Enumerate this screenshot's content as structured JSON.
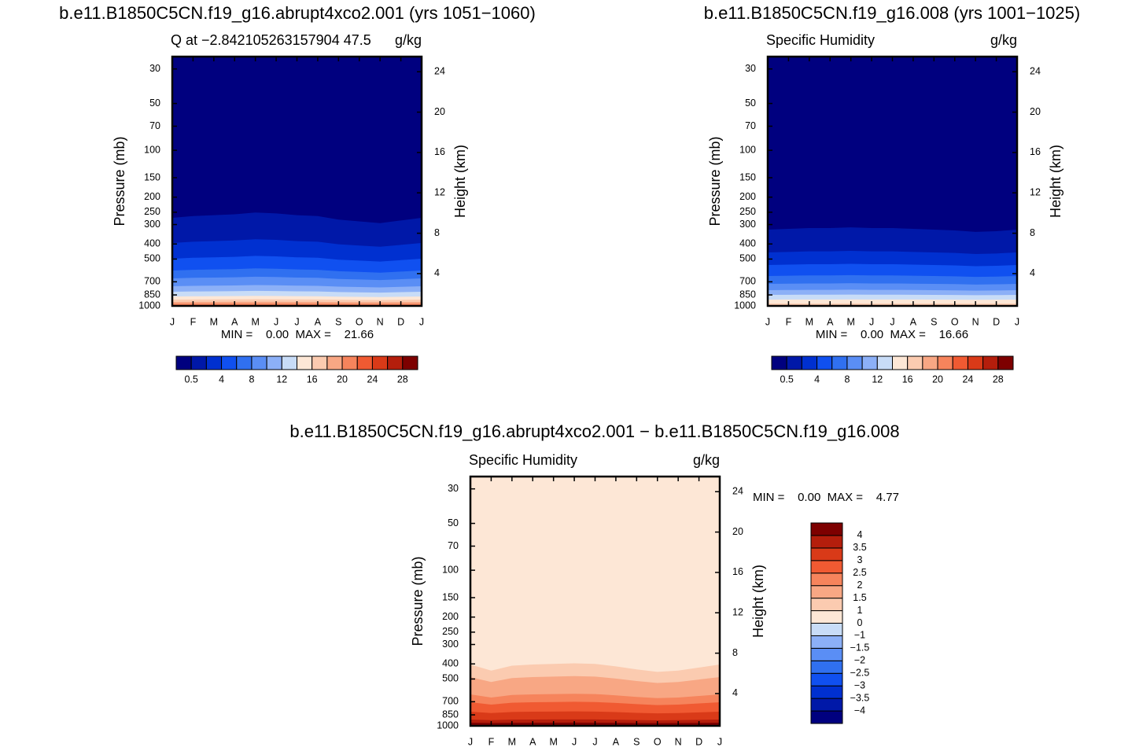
{
  "chart_data": [
    {
      "type": "contour",
      "title": "b.e11.B1850C5CN.f19_g16.abrupt4xco2.001 (yrs 1051−1060)",
      "subtitle_left": "Q  at  −2.842105263157904  47.5",
      "subtitle_right": "g/kg",
      "ylabel": "Pressure (mb)",
      "y2label": "Height (km)",
      "categories": [
        "J",
        "F",
        "M",
        "A",
        "M",
        "J",
        "J",
        "A",
        "S",
        "O",
        "N",
        "D",
        "J"
      ],
      "ylog": true,
      "ylim": [
        1000,
        25
      ],
      "yticks": [
        30,
        50,
        70,
        100,
        150,
        200,
        250,
        300,
        400,
        500,
        700,
        850,
        1000
      ],
      "y2lim": [
        0.8,
        25.5
      ],
      "y2ticks": [
        4,
        8,
        12,
        16,
        20,
        24
      ],
      "stats": "MIN =    0.00  MAX =    21.66",
      "colorbar": {
        "orientation": "horizontal",
        "labels": [
          "0.5",
          "4",
          "8",
          "12",
          "16",
          "20",
          "24",
          "28"
        ],
        "colors": [
          "#00007f",
          "#0018a8",
          "#0030d0",
          "#1050f0",
          "#3070f0",
          "#5a8ef5",
          "#8cb0f7",
          "#c8dcf7",
          "#fde7d6",
          "#fbcbb0",
          "#f8a784",
          "#f6845c",
          "#f05a32",
          "#d93a18",
          "#b41e0c",
          "#7d0000"
        ]
      }
    },
    {
      "type": "contour",
      "title": "b.e11.B1850C5CN.f19_g16.008 (yrs 1001−1025)",
      "subtitle_left": "Specific Humidity",
      "subtitle_right": "g/kg",
      "ylabel": "Pressure (mb)",
      "y2label": "Height (km)",
      "categories": [
        "J",
        "F",
        "M",
        "A",
        "M",
        "J",
        "J",
        "A",
        "S",
        "O",
        "N",
        "D",
        "J"
      ],
      "ylog": true,
      "ylim": [
        1000,
        25
      ],
      "yticks": [
        30,
        50,
        70,
        100,
        150,
        200,
        250,
        300,
        400,
        500,
        700,
        850,
        1000
      ],
      "y2lim": [
        0.8,
        25.5
      ],
      "y2ticks": [
        4,
        8,
        12,
        16,
        20,
        24
      ],
      "stats": "MIN =    0.00  MAX =    16.66",
      "colorbar": {
        "orientation": "horizontal",
        "labels": [
          "0.5",
          "4",
          "8",
          "12",
          "16",
          "20",
          "24",
          "28"
        ],
        "colors": [
          "#00007f",
          "#0018a8",
          "#0030d0",
          "#1050f0",
          "#3070f0",
          "#5a8ef5",
          "#8cb0f7",
          "#c8dcf7",
          "#fde7d6",
          "#fbcbb0",
          "#f8a784",
          "#f6845c",
          "#f05a32",
          "#d93a18",
          "#b41e0c",
          "#7d0000"
        ]
      }
    },
    {
      "type": "contour",
      "title": "b.e11.B1850C5CN.f19_g16.abrupt4xco2.001 − b.e11.B1850C5CN.f19_g16.008",
      "subtitle_left": "Specific Humidity",
      "subtitle_right": "g/kg",
      "ylabel": "Pressure (mb)",
      "y2label": "Height (km)",
      "categories": [
        "J",
        "F",
        "M",
        "A",
        "M",
        "J",
        "J",
        "A",
        "S",
        "O",
        "N",
        "D",
        "J"
      ],
      "ylog": true,
      "ylim": [
        1000,
        25
      ],
      "yticks": [
        30,
        50,
        70,
        100,
        150,
        200,
        250,
        300,
        400,
        500,
        700,
        850,
        1000
      ],
      "y2lim": [
        0.8,
        25.5
      ],
      "y2ticks": [
        4,
        8,
        12,
        16,
        20,
        24
      ],
      "stats": "MIN =    0.00  MAX =    4.77",
      "colorbar": {
        "orientation": "vertical",
        "labels": [
          "4",
          "3.5",
          "3",
          "2.5",
          "2",
          "1.5",
          "1",
          "0",
          "−1",
          "−1.5",
          "−2",
          "−2.5",
          "−3",
          "−3.5",
          "−4"
        ],
        "colors": [
          "#00007f",
          "#0018a8",
          "#0030d0",
          "#1050f0",
          "#3070f0",
          "#5a8ef5",
          "#8cb0f7",
          "#c8dcf7",
          "#fde7d6",
          "#fbcbb0",
          "#f8a784",
          "#f6845c",
          "#f05a32",
          "#d93a18",
          "#b41e0c",
          "#7d0000"
        ]
      }
    }
  ]
}
